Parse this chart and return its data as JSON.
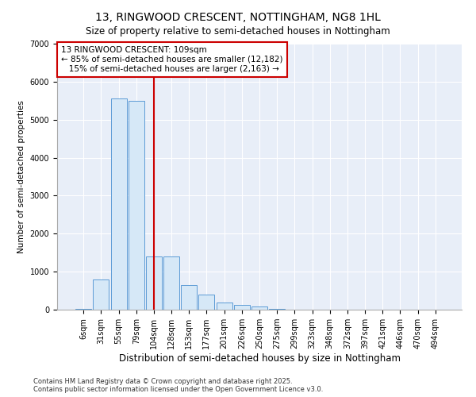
{
  "title": "13, RINGWOOD CRESCENT, NOTTINGHAM, NG8 1HL",
  "subtitle": "Size of property relative to semi-detached houses in Nottingham",
  "xlabel": "Distribution of semi-detached houses by size in Nottingham",
  "ylabel": "Number of semi-detached properties",
  "categories": [
    "6sqm",
    "31sqm",
    "55sqm",
    "79sqm",
    "104sqm",
    "128sqm",
    "153sqm",
    "177sqm",
    "201sqm",
    "226sqm",
    "250sqm",
    "275sqm",
    "299sqm",
    "323sqm",
    "348sqm",
    "372sqm",
    "397sqm",
    "421sqm",
    "446sqm",
    "470sqm",
    "494sqm"
  ],
  "values": [
    15,
    800,
    5550,
    5500,
    1400,
    1400,
    650,
    400,
    180,
    130,
    90,
    15,
    5,
    0,
    0,
    0,
    0,
    0,
    0,
    0,
    0
  ],
  "bar_color": "#d6e8f7",
  "bar_edge_color": "#5b9bd5",
  "vline_color": "#cc0000",
  "annotation_text": "13 RINGWOOD CRESCENT: 109sqm\n← 85% of semi-detached houses are smaller (12,182)\n   15% of semi-detached houses are larger (2,163) →",
  "annotation_box_color": "#cc0000",
  "ylim": [
    0,
    7000
  ],
  "yticks": [
    0,
    1000,
    2000,
    3000,
    4000,
    5000,
    6000,
    7000
  ],
  "background_color": "#e8eef8",
  "footer": "Contains HM Land Registry data © Crown copyright and database right 2025.\nContains public sector information licensed under the Open Government Licence v3.0.",
  "title_fontsize": 10,
  "subtitle_fontsize": 8.5,
  "xlabel_fontsize": 8.5,
  "ylabel_fontsize": 7.5,
  "tick_fontsize": 7,
  "annotation_fontsize": 7.5,
  "footer_fontsize": 6
}
